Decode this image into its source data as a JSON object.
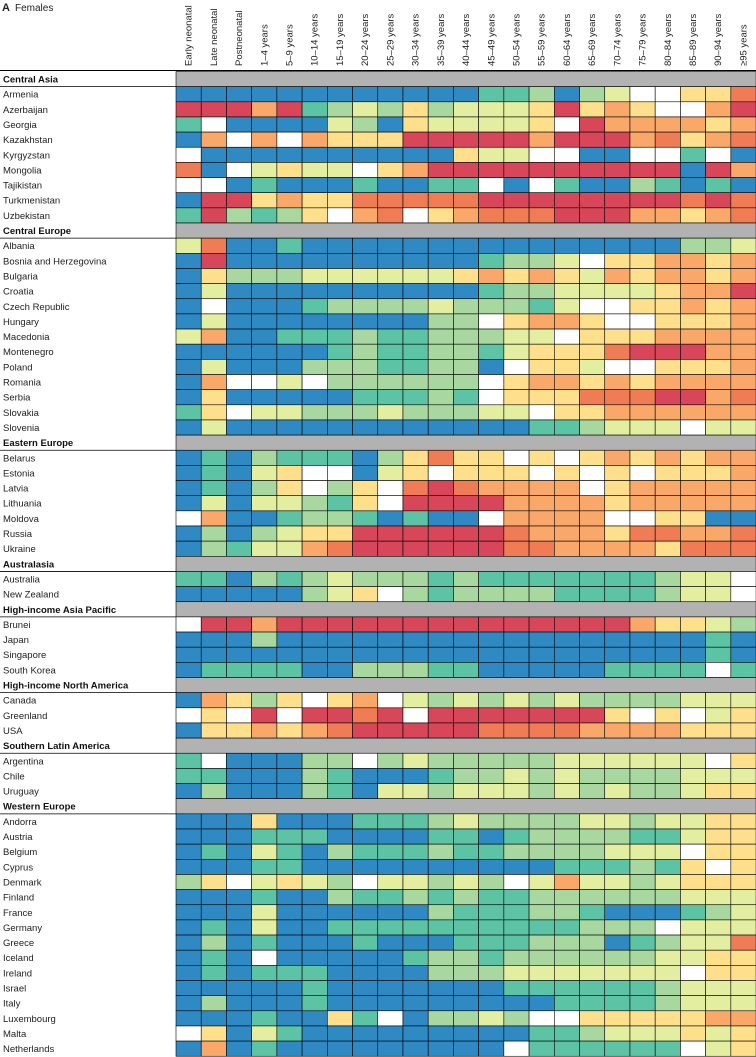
{
  "panel": {
    "letter": "A",
    "title": "Females"
  },
  "colors": {
    "blue": "#2f8ac4",
    "teal": "#5cc3a4",
    "lgreen": "#a8d8a0",
    "lyellow": "#e4eea0",
    "white": "#ffffff",
    "yellow": "#fddf8c",
    "orange": "#f9a86a",
    "dorange": "#f07c55",
    "red": "#d8465a",
    "gray": "#b2b2b2"
  },
  "chart_data": {
    "type": "heatmap",
    "title": "A Females",
    "columns": [
      "Early neonatal",
      "Late neonatal",
      "Postneonatal",
      "1–4 years",
      "5–9 years",
      "10–14 years",
      "15–19 years",
      "20–24 years",
      "25–29 years",
      "30–34 years",
      "35–39 years",
      "40–44 years",
      "45–49 years",
      "50–54 years",
      "55–59 years",
      "60–64 years",
      "65–69 years",
      "70–74 years",
      "75–79 years",
      "80–84 years",
      "85–89 years",
      "90–94 years",
      "≥95 years"
    ],
    "groups": [
      {
        "region": "Central Asia",
        "rows": [
          {
            "name": "Armenia",
            "cells": "BBBBBBBBBBBBTTGBGLWWYYD"
          },
          {
            "name": "Azerbaijan",
            "cells": "RRRORTGLGYGLLLYRYOYWWOR"
          },
          {
            "name": "Georgia",
            "cells": "TWBBBBLGBYLLLLYWROOOOYO"
          },
          {
            "name": "Kazakhstan",
            "cells": "BOWOWOYYYRRRRRORRRODYOD"
          },
          {
            "name": "Kyrgyzstan",
            "cells": "WBBBBBBBBBBYLLWWBBWWTWB"
          },
          {
            "name": "Mongolia",
            "cells": "DBWLYLLWYORRRRRRRRRRBRO"
          },
          {
            "name": "Tajikistan",
            "cells": "WWBTBBBTBBTTWBWTBBGTBTB"
          },
          {
            "name": "Turkmenistan",
            "cells": "BRRYOYYDDDDDRRRRRRRRDRD"
          },
          {
            "name": "Uzbekistan",
            "cells": "TRGTGYWODWYODDDRRROOYOD"
          }
        ]
      },
      {
        "region": "Central Europe",
        "rows": [
          {
            "name": "Albania",
            "cells": "LDBBTBBBBBBBBBBBBBBBGGL"
          },
          {
            "name": "Bosnia and Herzegovina",
            "cells": "BRBBBBBBBBBBTGGLWYYOOYO"
          },
          {
            "name": "Bulgaria",
            "cells": "BYGGGLLLLLLYOYOYLOYOOYO"
          },
          {
            "name": "Croatia",
            "cells": "BLBBBBBBBBBBTGGLLLLYOOR"
          },
          {
            "name": "Czech Republic",
            "cells": "BWBBBTGGGGLGGGTLWWYYOYO"
          },
          {
            "name": "Hungary",
            "cells": "BLBBBBBBBBGGWYOOYWWYYYO"
          },
          {
            "name": "Macedonia",
            "cells": "LOBBTTTGTTGGGLLWYYYOOOO"
          },
          {
            "name": "Montenegro",
            "cells": "BBBBBBTGTTGGTLYYYDRRROO"
          },
          {
            "name": "Poland",
            "cells": "BLBBBGGGTTGGBWYYLWWYYYO"
          },
          {
            "name": "Romania",
            "cells": "BOWWLWGGGGGGWYOOYOYOOOO"
          },
          {
            "name": "Serbia",
            "cells": "BYBBBBBTTTGTWYYYDDDRROD"
          },
          {
            "name": "Slovakia",
            "cells": "TYWLLGGGLGGGLLWYYOOOOOO"
          },
          {
            "name": "Slovenia",
            "cells": "BLBBBBBBBBBBBBTTGLLLWLL"
          }
        ]
      },
      {
        "region": "Eastern Europe",
        "rows": [
          {
            "name": "Belarus",
            "cells": "BTBGTTTBGYDYYWYWYOYOYOO"
          },
          {
            "name": "Estonia",
            "cells": "BTBLYWWBLYWYYYWYWYWYYYO"
          },
          {
            "name": "Latvia",
            "cells": "BTBGYWGYWDRDOOOOWYOOOOO"
          },
          {
            "name": "Lithuania",
            "cells": "BLBLLGTYWRRRROOOOYOOOOO"
          },
          {
            "name": "Moldova",
            "cells": "WOBBTGGTBTBBWOOOOWWYYBB"
          },
          {
            "name": "Russia",
            "cells": "BGBGLYYRRRRRRDOOOYDDOOD"
          },
          {
            "name": "Ukraine",
            "cells": "BGTLLODRRRRRRDDOOOOYDDD"
          }
        ]
      },
      {
        "region": "Australasia",
        "rows": [
          {
            "name": "Australia",
            "cells": "TTBGTGLGGGTGTTTTTTTGLLW"
          },
          {
            "name": "New Zealand",
            "cells": "BBBBBGLYWGTGGGGTTTTGLLW"
          }
        ]
      },
      {
        "region": "High-income Asia Pacific",
        "rows": [
          {
            "name": "Brunei",
            "cells": "WRRORRRRRRRRRRRRRROYYLG"
          },
          {
            "name": "Japan",
            "cells": "BBBGBBBBBBBBBBBBBBBBBTB"
          },
          {
            "name": "Singapore",
            "cells": "BBBBBBBBBBBBBBBBBBBBBTB"
          },
          {
            "name": "South Korea",
            "cells": "BTTTTBBGGGTTBBBBBTTTTWT"
          }
        ]
      },
      {
        "region": "High-income North America",
        "rows": [
          {
            "name": "Canada",
            "cells": "BOYGYWYOWLGLGLGLGGGGLLL"
          },
          {
            "name": "Greenland",
            "cells": "WYWRWRRDRWRRRRRRRYWYWLY"
          },
          {
            "name": "USA",
            "cells": "BYYOYODRRRRRDDDDOOOOYYY"
          }
        ]
      },
      {
        "region": "Southern Latin America",
        "rows": [
          {
            "name": "Argentina",
            "cells": "TWBBBGGWGLGGGGGLLLLLLWY"
          },
          {
            "name": "Chile",
            "cells": "TTBBBGTBBBTGGLGLGGGGLLL"
          },
          {
            "name": "Uruguay",
            "cells": "BGBBBGTBLLGLLLGLGLGGLYY"
          }
        ]
      },
      {
        "region": "Western Europe",
        "rows": [
          {
            "name": "Andorra",
            "cells": "BBBYBBBTTTGLGGGGLLGLLYY"
          },
          {
            "name": "Austria",
            "cells": "BBBTTTBBBBTTBTGGGGTTLYY"
          },
          {
            "name": "Belgium",
            "cells": "BTBLTBGTTTGTTGGGGLLLWYY"
          },
          {
            "name": "Cyprus",
            "cells": "BBBTTBBBBBBBBBBTTTGTYWY"
          },
          {
            "name": "Denmark",
            "cells": "GYWLYLGWLLGLGWLOLLGLYYY"
          },
          {
            "name": "Finland",
            "cells": "BBBTBBGTTGTGTTGGGGGGLLL"
          },
          {
            "name": "France",
            "cells": "BBBLBBBBBBGTTTGGTBBBTGL"
          },
          {
            "name": "Germany",
            "cells": "BTBLBBTTTTTTTTTTGGGWLLL"
          },
          {
            "name": "Greece",
            "cells": "BGBTBBBTBBBTTTGGGBTGLLD"
          },
          {
            "name": "Iceland",
            "cells": "BTBWBBBBBTGGTGGGGGGLLYY"
          },
          {
            "name": "Ireland",
            "cells": "BTBTTTBBBBGGGLLLLLLLWYY"
          },
          {
            "name": "Israel",
            "cells": "BBBBBTBBBBBBBTTTTTTGLLL"
          },
          {
            "name": "Italy",
            "cells": "BGBBBTBBBBBBBBBTTTTGLLL"
          },
          {
            "name": "Luxembourg",
            "cells": "BBBTBBYTWBGGLGWWYYYYYOO"
          },
          {
            "name": "Malta",
            "cells": "WYBLTBBBBBBBBBTTGLLLYLY"
          },
          {
            "name": "Netherlands",
            "cells": "BOBTBBBBBBBBBWTTTTTTWLY"
          }
        ]
      }
    ]
  }
}
